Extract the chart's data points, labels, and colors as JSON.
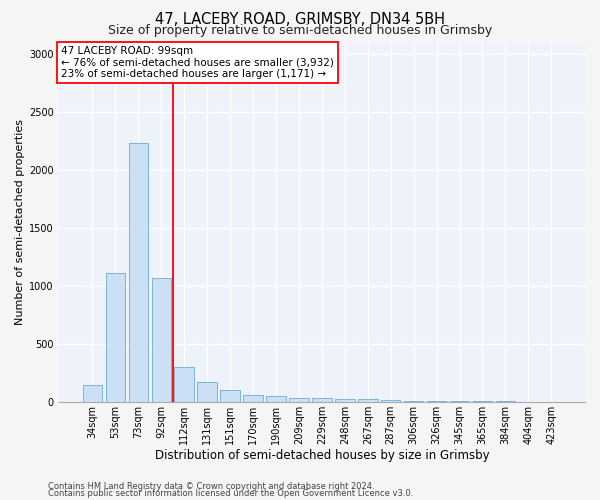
{
  "title": "47, LACEBY ROAD, GRIMSBY, DN34 5BH",
  "subtitle": "Size of property relative to semi-detached houses in Grimsby",
  "xlabel": "Distribution of semi-detached houses by size in Grimsby",
  "ylabel": "Number of semi-detached properties",
  "categories": [
    "34sqm",
    "53sqm",
    "73sqm",
    "92sqm",
    "112sqm",
    "131sqm",
    "151sqm",
    "170sqm",
    "190sqm",
    "209sqm",
    "229sqm",
    "248sqm",
    "267sqm",
    "287sqm",
    "306sqm",
    "326sqm",
    "345sqm",
    "365sqm",
    "384sqm",
    "404sqm",
    "423sqm"
  ],
  "values": [
    145,
    1110,
    2230,
    1070,
    300,
    175,
    100,
    60,
    50,
    35,
    30,
    25,
    20,
    15,
    10,
    8,
    5,
    4,
    3,
    2,
    2
  ],
  "bar_color": "#cce0f5",
  "bar_edgecolor": "#6aaed6",
  "vline_x": 3.5,
  "vline_color": "red",
  "annotation_line1": "47 LACEBY ROAD: 99sqm",
  "annotation_line2": "← 76% of semi-detached houses are smaller (3,932)",
  "annotation_line3": "23% of semi-detached houses are larger (1,171) →",
  "ylim": [
    0,
    3100
  ],
  "yticks": [
    0,
    500,
    1000,
    1500,
    2000,
    2500,
    3000
  ],
  "footer1": "Contains HM Land Registry data © Crown copyright and database right 2024.",
  "footer2": "Contains public sector information licensed under the Open Government Licence v3.0.",
  "background_color": "#eef2fa",
  "grid_color": "#ffffff",
  "fig_facecolor": "#f5f5f5",
  "title_fontsize": 10.5,
  "subtitle_fontsize": 9,
  "tick_fontsize": 7,
  "ylabel_fontsize": 8,
  "xlabel_fontsize": 8.5,
  "annotation_fontsize": 7.5,
  "footer_fontsize": 6
}
